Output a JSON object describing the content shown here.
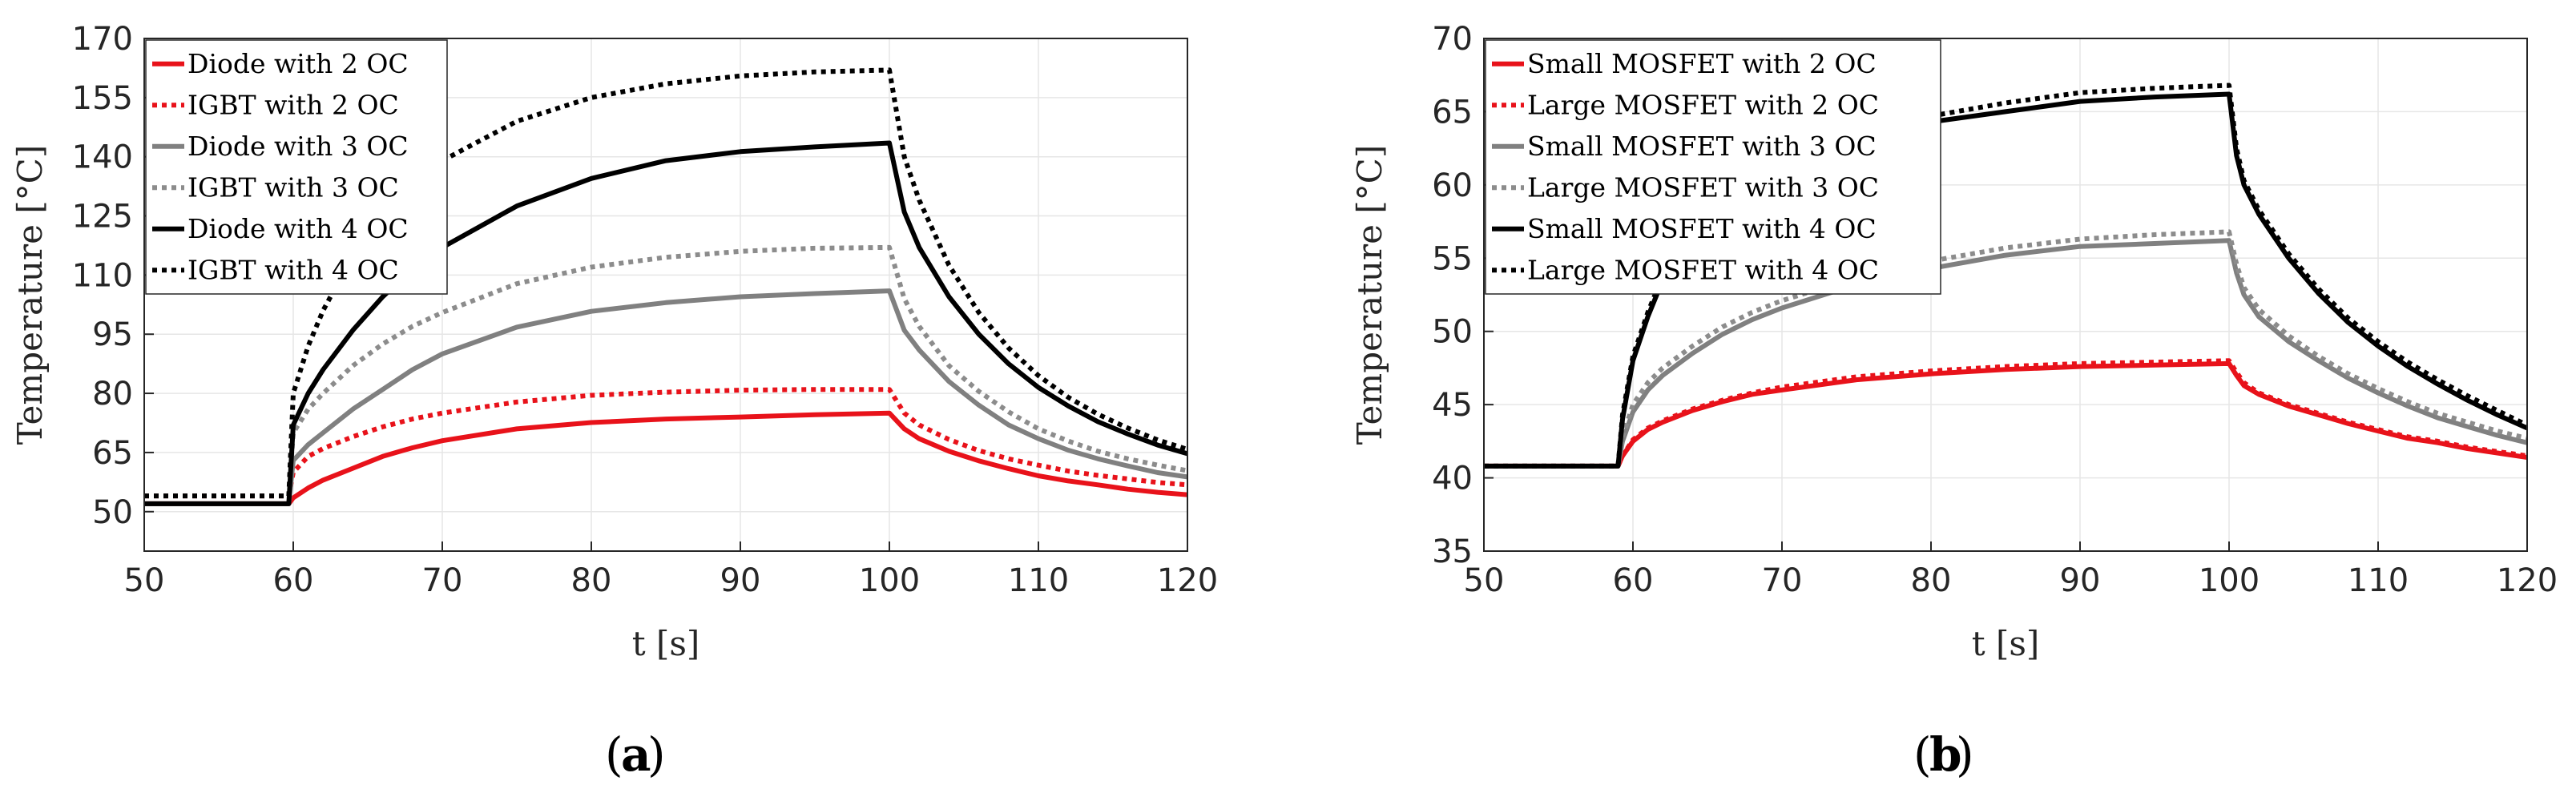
{
  "chart_data": [
    {
      "type": "line",
      "panel_label": "a",
      "xlabel": "t [s]",
      "ylabel": "Temperature [°C]",
      "xlim": [
        50,
        120
      ],
      "ylim": [
        40,
        170
      ],
      "xticks": [
        "50",
        "60",
        "70",
        "80",
        "90",
        "100",
        "110",
        "120"
      ],
      "yticks": [
        "50",
        "65",
        "80",
        "95",
        "110",
        "125",
        "140",
        "155",
        "170"
      ],
      "grid": true,
      "legend_position": "top-left",
      "series": [
        {
          "name": "Diode with 2 OC",
          "color": "#e8121a",
          "dash": "solid",
          "x": [
            50,
            59.7,
            60,
            61,
            62,
            64,
            66,
            68,
            70,
            75,
            80,
            85,
            90,
            95,
            100,
            101,
            102,
            104,
            106,
            108,
            110,
            112,
            114,
            116,
            118,
            120
          ],
          "y": [
            52,
            52,
            53.5,
            56,
            58,
            61,
            64,
            66.2,
            68,
            71,
            72.6,
            73.5,
            74,
            74.6,
            75,
            71,
            68.5,
            65.3,
            62.9,
            60.9,
            59.1,
            57.8,
            56.8,
            55.7,
            54.9,
            54.3
          ]
        },
        {
          "name": "IGBT with 2 OC",
          "color": "#e8121a",
          "dash": "dotted",
          "x": [
            50,
            59.7,
            60,
            61,
            62,
            64,
            66,
            68,
            70,
            75,
            80,
            85,
            90,
            95,
            100,
            101,
            102,
            104,
            106,
            108,
            110,
            112,
            114,
            116,
            118,
            120
          ],
          "y": [
            54,
            54,
            60,
            64,
            66,
            69,
            71.5,
            73.5,
            75,
            77.8,
            79.5,
            80.3,
            80.8,
            81,
            81,
            75,
            72,
            68.3,
            65.5,
            63.4,
            61.8,
            60.3,
            59.2,
            58.3,
            57.4,
            56.8
          ]
        },
        {
          "name": "Diode with 3 OC",
          "color": "#808080",
          "dash": "solid",
          "x": [
            50,
            59.7,
            60,
            61,
            62,
            64,
            66,
            68,
            70,
            75,
            80,
            85,
            90,
            95,
            100,
            101,
            102,
            104,
            106,
            108,
            110,
            112,
            114,
            116,
            118,
            120
          ],
          "y": [
            52,
            52,
            63,
            67,
            70,
            76,
            81,
            86,
            90,
            96.8,
            100.8,
            103,
            104.5,
            105.3,
            106,
            96,
            91,
            83,
            77,
            72,
            68.5,
            65.6,
            63.4,
            61.6,
            59.9,
            58.8
          ]
        },
        {
          "name": "IGBT with 3 OC",
          "color": "#8c8c8c",
          "dash": "dotted",
          "x": [
            50,
            59.7,
            60,
            61,
            62,
            64,
            66,
            68,
            70,
            75,
            80,
            85,
            90,
            95,
            100,
            101,
            102,
            104,
            106,
            108,
            110,
            112,
            114,
            116,
            118,
            120
          ],
          "y": [
            54,
            54,
            70,
            76,
            80,
            87,
            92.5,
            97,
            100.5,
            107.8,
            112,
            114.5,
            116,
            116.8,
            117,
            104,
            97,
            87,
            80.5,
            75.3,
            71,
            67.9,
            65.3,
            63.4,
            61.8,
            60.4
          ]
        },
        {
          "name": "Diode with 4 OC",
          "color": "#000000",
          "dash": "solid",
          "x": [
            50,
            59.7,
            60,
            61,
            62,
            64,
            66,
            68,
            70,
            75,
            80,
            85,
            90,
            95,
            100,
            101,
            102,
            104,
            106,
            108,
            110,
            112,
            114,
            116,
            118,
            120
          ],
          "y": [
            52,
            52,
            72,
            80,
            86,
            96,
            104.5,
            111.5,
            117,
            127.5,
            134.5,
            139,
            141.3,
            142.5,
            143.5,
            126,
            117,
            104.5,
            95,
            87.5,
            81.5,
            76.8,
            72.8,
            69.7,
            66.9,
            64.7
          ]
        },
        {
          "name": "IGBT with 4 OC",
          "color": "#000000",
          "dash": "dotted",
          "x": [
            50,
            59.7,
            60,
            61,
            62,
            64,
            66,
            68,
            70,
            75,
            80,
            85,
            90,
            95,
            100,
            101,
            102,
            104,
            106,
            108,
            110,
            112,
            114,
            116,
            118,
            120
          ],
          "y": [
            54,
            54,
            80,
            92,
            101,
            115,
            125,
            133,
            139,
            149,
            155,
            158.5,
            160.5,
            161.5,
            162,
            140,
            129,
            112.5,
            100.5,
            91.5,
            84.5,
            79,
            74.7,
            71.2,
            68.2,
            65.8
          ]
        }
      ]
    },
    {
      "type": "line",
      "panel_label": "b",
      "xlabel": "t [s]",
      "ylabel": "Temperature [°C]",
      "xlim": [
        50,
        120
      ],
      "ylim": [
        35,
        70
      ],
      "xticks": [
        "50",
        "60",
        "70",
        "80",
        "90",
        "100",
        "110",
        "120"
      ],
      "yticks": [
        "35",
        "40",
        "45",
        "50",
        "55",
        "60",
        "65",
        "70"
      ],
      "grid": true,
      "legend_position": "top-left",
      "series": [
        {
          "name": "Small MOSFET with 2 OC",
          "color": "#e8121a",
          "dash": "solid",
          "x": [
            50,
            59,
            59.3,
            60,
            61,
            62,
            64,
            66,
            68,
            70,
            75,
            80,
            85,
            90,
            95,
            100,
            100.5,
            101,
            102,
            104,
            106,
            108,
            110,
            112,
            114,
            116,
            118,
            120
          ],
          "y": [
            40.8,
            40.8,
            41.5,
            42.5,
            43.3,
            43.8,
            44.6,
            45.2,
            45.7,
            46,
            46.7,
            47.1,
            47.4,
            47.6,
            47.7,
            47.8,
            47,
            46.3,
            45.7,
            44.9,
            44.3,
            43.7,
            43.2,
            42.7,
            42.4,
            42,
            41.7,
            41.4
          ]
        },
        {
          "name": "Large MOSFET with 2 OC",
          "color": "#e8121a",
          "dash": "dotted",
          "x": [
            50,
            59,
            59.3,
            60,
            61,
            62,
            64,
            66,
            68,
            70,
            75,
            80,
            85,
            90,
            95,
            100,
            100.5,
            101,
            102,
            104,
            106,
            108,
            110,
            112,
            114,
            116,
            118,
            120
          ],
          "y": [
            40.8,
            40.8,
            41.5,
            42.6,
            43.4,
            43.9,
            44.7,
            45.3,
            45.8,
            46.2,
            46.9,
            47.3,
            47.6,
            47.8,
            47.9,
            48,
            47.2,
            46.5,
            45.8,
            45,
            44.4,
            43.8,
            43.3,
            42.8,
            42.5,
            42.1,
            41.8,
            41.5
          ]
        },
        {
          "name": "Small MOSFET with 3 OC",
          "color": "#808080",
          "dash": "solid",
          "x": [
            50,
            59,
            59.3,
            60,
            61,
            62,
            64,
            66,
            68,
            70,
            75,
            80,
            85,
            90,
            95,
            100,
            100.5,
            101,
            102,
            104,
            106,
            108,
            110,
            112,
            114,
            116,
            118,
            120
          ],
          "y": [
            40.8,
            40.8,
            42.5,
            44.5,
            46,
            47,
            48.5,
            49.8,
            50.8,
            51.6,
            53.2,
            54.3,
            55.2,
            55.8,
            56,
            56.2,
            54,
            52.5,
            51,
            49.3,
            48,
            46.8,
            45.8,
            44.9,
            44.1,
            43.5,
            42.9,
            42.4
          ]
        },
        {
          "name": "Large MOSFET with 3 OC",
          "color": "#8c8c8c",
          "dash": "dotted",
          "x": [
            50,
            59,
            59.3,
            60,
            61,
            62,
            64,
            66,
            68,
            70,
            75,
            80,
            85,
            90,
            95,
            100,
            100.5,
            101,
            102,
            104,
            106,
            108,
            110,
            112,
            114,
            116,
            118,
            120
          ],
          "y": [
            40.8,
            40.8,
            42.8,
            45,
            46.5,
            47.5,
            49,
            50.3,
            51.3,
            52.1,
            53.7,
            54.8,
            55.7,
            56.3,
            56.6,
            56.8,
            54.6,
            53,
            51.5,
            49.7,
            48.3,
            47.1,
            46.1,
            45.2,
            44.4,
            43.8,
            43.2,
            42.7
          ]
        },
        {
          "name": "Small MOSFET with 4 OC",
          "color": "#000000",
          "dash": "solid",
          "x": [
            50,
            59,
            59.3,
            60,
            61,
            62,
            64,
            66,
            68,
            70,
            75,
            80,
            85,
            90,
            95,
            100,
            100.5,
            101,
            102,
            104,
            106,
            108,
            110,
            112,
            114,
            116,
            118,
            120
          ],
          "y": [
            40.8,
            40.8,
            44,
            48,
            51,
            53.5,
            56.5,
            58.5,
            60,
            61.2,
            63,
            64.3,
            65,
            65.7,
            66,
            66.2,
            62,
            60,
            58,
            55,
            52.6,
            50.6,
            49,
            47.6,
            46.4,
            45.3,
            44.3,
            43.4
          ]
        },
        {
          "name": "Large MOSFET with 4 OC",
          "color": "#000000",
          "dash": "dotted",
          "x": [
            50,
            59,
            59.3,
            60,
            61,
            62,
            64,
            66,
            68,
            70,
            75,
            80,
            85,
            90,
            95,
            100,
            100.5,
            101,
            102,
            104,
            106,
            108,
            110,
            112,
            114,
            116,
            118,
            120
          ],
          "y": [
            40.8,
            40.8,
            44.3,
            48.3,
            51.3,
            53.8,
            56.8,
            58.8,
            60.3,
            61.5,
            63.4,
            64.7,
            65.6,
            66.3,
            66.6,
            66.8,
            62.5,
            60.3,
            58.3,
            55.3,
            52.9,
            50.9,
            49.3,
            47.9,
            46.7,
            45.6,
            44.6,
            43.6
          ]
        }
      ]
    }
  ]
}
